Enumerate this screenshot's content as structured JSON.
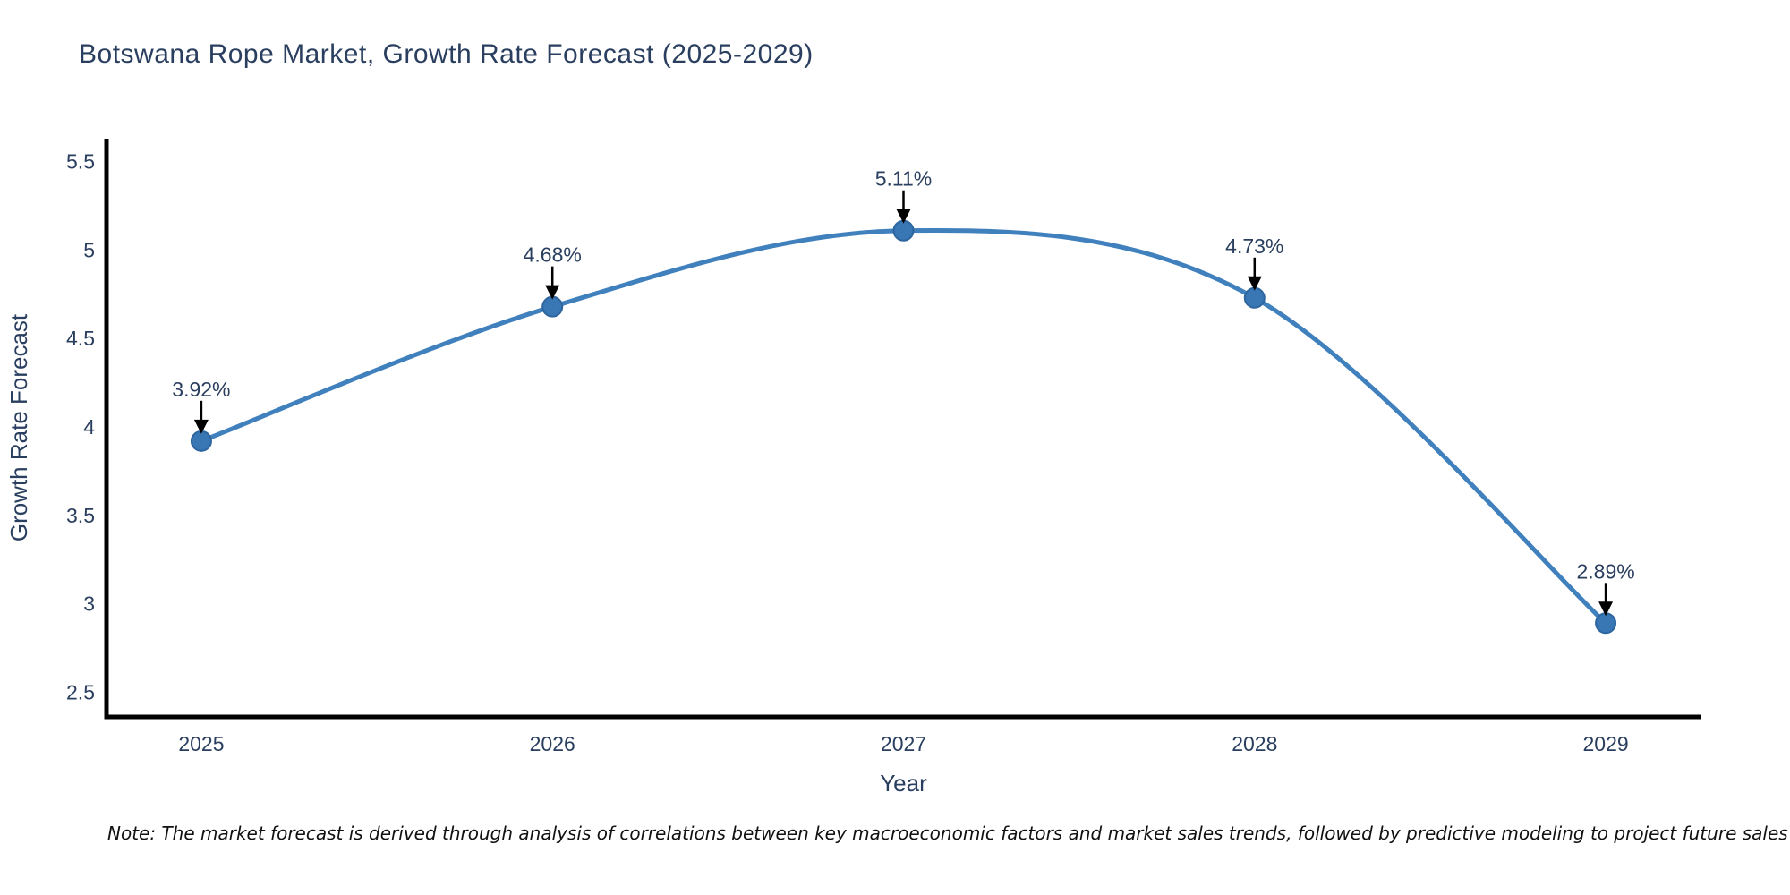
{
  "chart_data": {
    "type": "line",
    "title": "Botswana Rope Market, Growth Rate Forecast (2025-2029)",
    "categories": [
      "2025",
      "2026",
      "2027",
      "2028",
      "2029"
    ],
    "series": [
      {
        "name": "Growth Rate Forecast",
        "values": [
          3.92,
          4.68,
          5.11,
          4.73,
          2.89
        ]
      }
    ],
    "point_labels": [
      "3.92%",
      "4.68%",
      "5.11%",
      "4.73%",
      "2.89%"
    ],
    "xlabel": "Year",
    "ylabel": "Growth Rate Forecast",
    "yticks": [
      2.5,
      3,
      3.5,
      4,
      4.5,
      5,
      5.5
    ],
    "ylim": [
      2.36,
      5.63
    ],
    "x_edge_padding": 0.27,
    "grid": false,
    "legend": "none",
    "smooth": true,
    "colors": {
      "line": "#3f80bd",
      "marker_fill": "#3876b4",
      "marker_edge": "#2d659f",
      "axis": "#000000",
      "text": "#2a3f5f",
      "annotation_arrow": "#000000"
    }
  },
  "footer": {
    "note": "Note: The market forecast is derived through analysis of correlations between key macroeconomic factors and market sales trends, followed by predictive modeling to project future sales"
  }
}
